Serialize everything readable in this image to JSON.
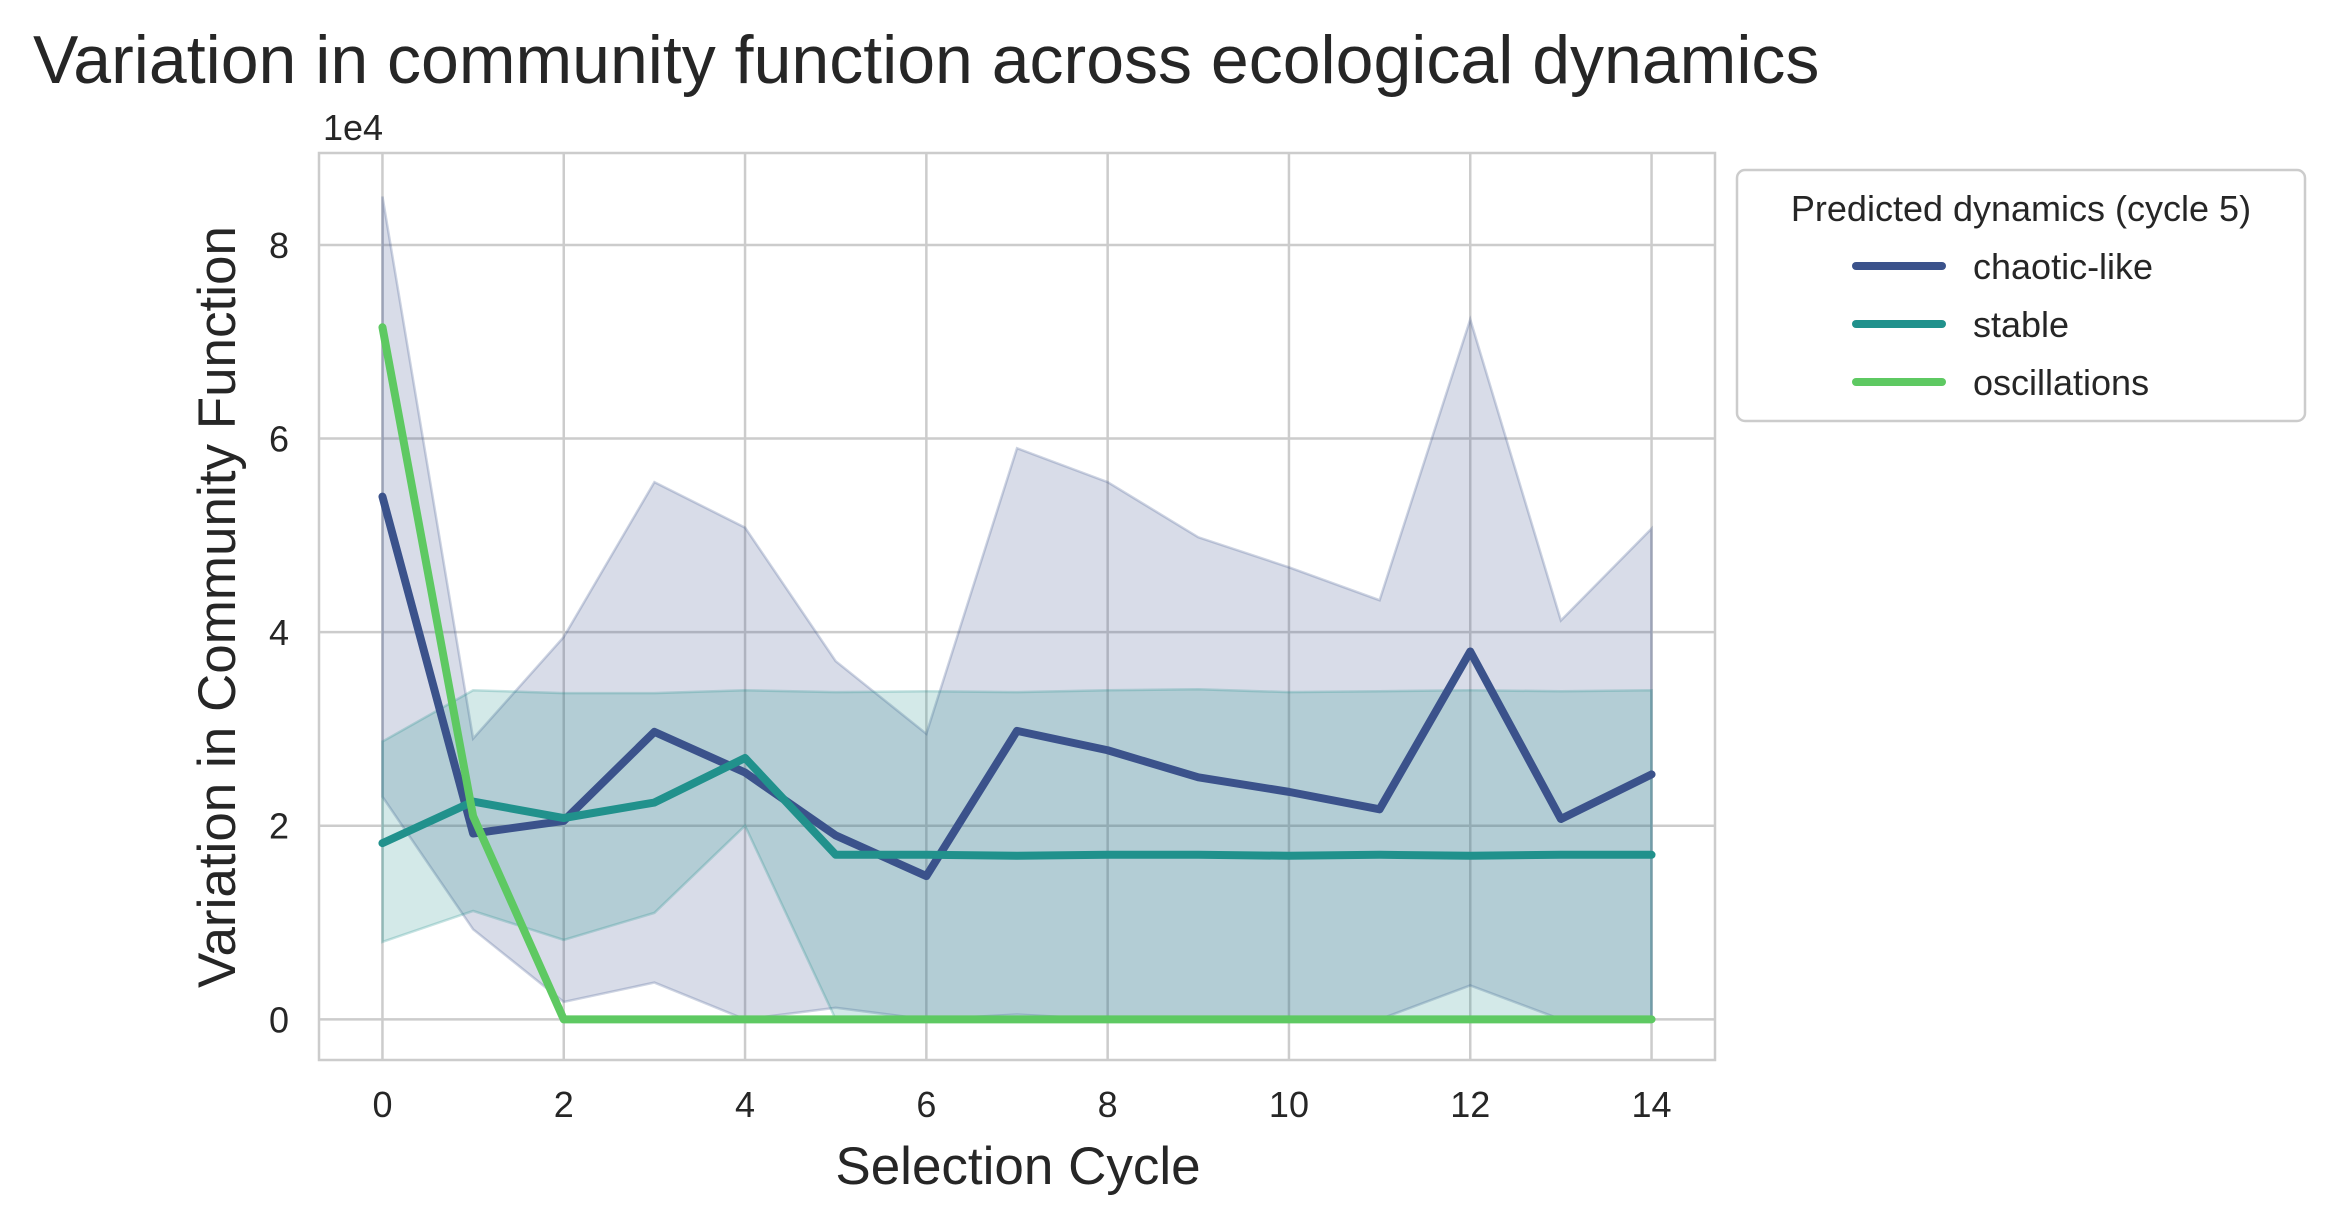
{
  "chart_data": {
    "type": "line",
    "title": "Variation in community function across ecological dynamics",
    "xlabel": "Selection Cycle",
    "ylabel": "Variation in Community Function",
    "y_offset_label": "1e4",
    "xlim": [
      -0.7,
      14.7
    ],
    "ylim": [
      -0.42,
      8.95
    ],
    "x_ticks": [
      0,
      2,
      4,
      6,
      8,
      10,
      12,
      14
    ],
    "y_ticks": [
      0,
      2,
      4,
      6,
      8
    ],
    "grid": true,
    "legend": {
      "title": "Predicted dynamics (cycle 5)",
      "placement": "outside-upper-right"
    },
    "x": [
      0,
      1,
      2,
      3,
      4,
      5,
      6,
      7,
      8,
      9,
      10,
      11,
      12,
      13,
      14
    ],
    "series": [
      {
        "name": "chaotic-like",
        "color": "#3b528b",
        "values": [
          5.4,
          1.92,
          2.05,
          2.97,
          2.55,
          1.9,
          1.48,
          2.98,
          2.78,
          2.5,
          2.35,
          2.17,
          3.8,
          2.07,
          2.53
        ],
        "band_upper": [
          8.5,
          2.9,
          3.95,
          5.55,
          5.08,
          3.7,
          2.95,
          5.9,
          5.55,
          4.98,
          4.67,
          4.33,
          7.23,
          4.12,
          5.07
        ],
        "band_lower": [
          2.3,
          0.93,
          0.18,
          0.38,
          0.0,
          0.12,
          0.0,
          0.05,
          0.0,
          0.0,
          0.0,
          0.0,
          0.35,
          0.0,
          0.0
        ]
      },
      {
        "name": "stable",
        "color": "#21918c",
        "values": [
          1.82,
          2.25,
          2.08,
          2.24,
          2.7,
          1.7,
          1.7,
          1.69,
          1.7,
          1.7,
          1.69,
          1.7,
          1.69,
          1.7,
          1.7
        ],
        "band_upper": [
          2.87,
          3.4,
          3.37,
          3.37,
          3.4,
          3.38,
          3.39,
          3.38,
          3.4,
          3.41,
          3.38,
          3.39,
          3.4,
          3.39,
          3.4
        ],
        "band_lower": [
          0.8,
          1.12,
          0.82,
          1.1,
          2.0,
          0.0,
          0.0,
          0.0,
          0.0,
          0.0,
          0.0,
          0.0,
          0.0,
          0.0,
          0.0
        ]
      },
      {
        "name": "oscillations",
        "color": "#5ec962",
        "values": [
          7.15,
          2.1,
          0.0,
          0.0,
          0.0,
          0.0,
          0.0,
          0.0,
          0.0,
          0.0,
          0.0,
          0.0,
          0.0,
          0.0,
          0.0
        ]
      }
    ]
  }
}
